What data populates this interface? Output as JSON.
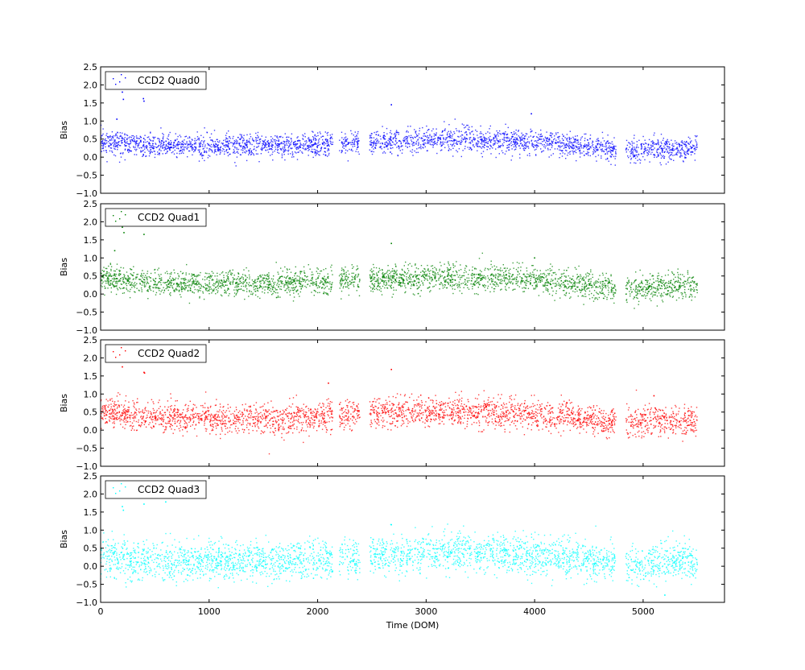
{
  "chart_data": {
    "type": "scatter",
    "xlabel": "Time (DOM)",
    "xlim": [
      0,
      5750
    ],
    "xticks": [
      0,
      1000,
      2000,
      3000,
      4000,
      5000
    ],
    "xtick_labels": [
      "0",
      "1000",
      "2000",
      "3000",
      "4000",
      "5000"
    ],
    "panels": [
      {
        "name": "CCD2 Quad0",
        "color": "#0000ff",
        "ylabel": "Bias",
        "ylim": [
          -1.0,
          2.5
        ],
        "yticks": [
          -1.0,
          -0.5,
          0.0,
          0.5,
          1.0,
          1.5,
          2.0,
          2.5
        ],
        "ytick_labels": [
          "−1.0",
          "−0.5",
          "0.0",
          "0.5",
          "1.0",
          "1.5",
          "2.0",
          "2.5"
        ],
        "legend": "top-left",
        "trend": [
          [
            0,
            0.45
          ],
          [
            400,
            0.32
          ],
          [
            1200,
            0.3
          ],
          [
            1600,
            0.3
          ],
          [
            2150,
            0.35
          ],
          [
            2500,
            0.42
          ],
          [
            3100,
            0.48
          ],
          [
            3600,
            0.48
          ],
          [
            4200,
            0.38
          ],
          [
            4750,
            0.2
          ],
          [
            4850,
            0.18
          ],
          [
            5500,
            0.25
          ]
        ],
        "spread": 0.16,
        "outliers": [
          [
            200,
            1.8
          ],
          [
            210,
            1.6
          ],
          [
            400,
            1.55
          ],
          [
            395,
            1.62
          ],
          [
            2680,
            1.45
          ],
          [
            3970,
            1.2
          ],
          [
            150,
            1.05
          ]
        ]
      },
      {
        "name": "CCD2 Quad1",
        "color": "#008000",
        "ylabel": "Bias",
        "ylim": [
          -1.0,
          2.5
        ],
        "yticks": [
          -1.0,
          -0.5,
          0.0,
          0.5,
          1.0,
          1.5,
          2.0,
          2.5
        ],
        "ytick_labels": [
          "−1.0",
          "−0.5",
          "0.0",
          "0.5",
          "1.0",
          "1.5",
          "2.0",
          "2.5"
        ],
        "legend": "top-left",
        "trend": [
          [
            0,
            0.45
          ],
          [
            400,
            0.32
          ],
          [
            1200,
            0.3
          ],
          [
            1600,
            0.28
          ],
          [
            2150,
            0.33
          ],
          [
            2500,
            0.4
          ],
          [
            3100,
            0.45
          ],
          [
            3600,
            0.45
          ],
          [
            4200,
            0.35
          ],
          [
            4750,
            0.15
          ],
          [
            4850,
            0.15
          ],
          [
            5500,
            0.25
          ]
        ],
        "spread": 0.18,
        "outliers": [
          [
            200,
            1.85
          ],
          [
            215,
            1.7
          ],
          [
            400,
            1.65
          ],
          [
            130,
            1.2
          ],
          [
            2680,
            1.4
          ],
          [
            4000,
            1.0
          ]
        ]
      },
      {
        "name": "CCD2 Quad2",
        "color": "#ff0000",
        "ylabel": "Bias",
        "ylim": [
          -1.0,
          2.5
        ],
        "yticks": [
          -1.0,
          -0.5,
          0.0,
          0.5,
          1.0,
          1.5,
          2.0,
          2.5
        ],
        "ytick_labels": [
          "−1.0",
          "−0.5",
          "0.0",
          "0.5",
          "1.0",
          "1.5",
          "2.0",
          "2.5"
        ],
        "legend": "top-left",
        "trend": [
          [
            0,
            0.5
          ],
          [
            400,
            0.35
          ],
          [
            1200,
            0.33
          ],
          [
            1600,
            0.3
          ],
          [
            2150,
            0.38
          ],
          [
            2500,
            0.48
          ],
          [
            3100,
            0.5
          ],
          [
            3600,
            0.52
          ],
          [
            4200,
            0.4
          ],
          [
            4750,
            0.22
          ],
          [
            4850,
            0.25
          ],
          [
            5500,
            0.25
          ]
        ],
        "spread": 0.2,
        "outliers": [
          [
            200,
            1.75
          ],
          [
            400,
            1.6
          ],
          [
            405,
            1.58
          ],
          [
            2680,
            1.68
          ],
          [
            2100,
            1.3
          ],
          [
            5100,
            0.95
          ]
        ]
      },
      {
        "name": "CCD2 Quad3",
        "color": "#00ffff",
        "ylabel": "Bias",
        "ylim": [
          -1.0,
          2.5
        ],
        "yticks": [
          -1.0,
          -0.5,
          0.0,
          0.5,
          1.0,
          1.5,
          2.0,
          2.5
        ],
        "ytick_labels": [
          "−1.0",
          "−0.5",
          "0.0",
          "0.5",
          "1.0",
          "1.5",
          "2.0",
          "2.5"
        ],
        "legend": "top-left",
        "trend": [
          [
            0,
            0.3
          ],
          [
            400,
            0.15
          ],
          [
            1200,
            0.15
          ],
          [
            1600,
            0.15
          ],
          [
            2150,
            0.2
          ],
          [
            2500,
            0.3
          ],
          [
            3100,
            0.38
          ],
          [
            3600,
            0.38
          ],
          [
            4200,
            0.25
          ],
          [
            4750,
            0.05
          ],
          [
            4850,
            0.05
          ],
          [
            5500,
            0.15
          ]
        ],
        "spread": 0.26,
        "outliers": [
          [
            200,
            1.65
          ],
          [
            210,
            1.55
          ],
          [
            400,
            1.72
          ],
          [
            600,
            1.78
          ],
          [
            2680,
            1.15
          ],
          [
            5200,
            -0.8
          ]
        ]
      }
    ],
    "x_segments": [
      [
        0,
        2140
      ],
      [
        2200,
        2390
      ],
      [
        2480,
        4750
      ],
      [
        4840,
        5500
      ]
    ],
    "points_per_panel": 3000
  }
}
